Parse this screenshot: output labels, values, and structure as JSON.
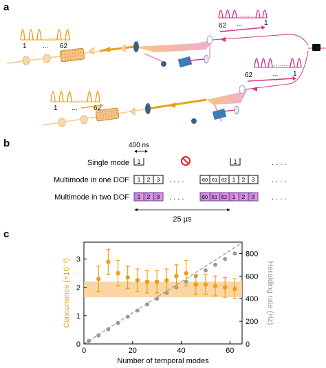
{
  "panels": {
    "a": "a",
    "b": "b",
    "c": "c"
  },
  "colors": {
    "orange": "#f39c12",
    "magenta": "#d63384",
    "gray": "#999999",
    "band": "#f8cf93",
    "purple": "#b57fe0",
    "pink": "#f29ad4",
    "blue": "#3d7ab8"
  },
  "panel_a": {
    "top_left_comb": {
      "left": "1",
      "mid": "...",
      "right": "62"
    },
    "bottom_left_comb": {
      "left": "1",
      "mid": "...",
      "right": "62"
    },
    "top_right_comb": {
      "left": "62",
      "mid": "...",
      "right": "1"
    },
    "bottom_right_comb": {
      "left": "62",
      "mid": "...",
      "right": "1"
    }
  },
  "panel_b": {
    "timescale": "400 ns",
    "rows": [
      {
        "label": "Single mode",
        "cells_left": [
          "1"
        ],
        "cells_right": [
          "1"
        ]
      },
      {
        "label": "Multimode in one DOF",
        "cells_left": [
          "1",
          "2",
          "3"
        ],
        "cells_right": [
          "60",
          "61",
          "62",
          "1",
          "2",
          "3"
        ]
      },
      {
        "label": "Multimode in two DOF",
        "cells_left": [
          "1",
          "2",
          "3"
        ],
        "cells_right": [
          "60",
          "61",
          "62",
          "1",
          "2",
          "3"
        ]
      }
    ],
    "dots": ". . . .",
    "period": "25 µs"
  },
  "chart_data": {
    "type": "scatter",
    "xlabel": "Number of temporal modes",
    "ylabel_left": "Concurrence (×10⁻³)",
    "ylabel_right": "Heralding rate (Hz)",
    "xlim": [
      0,
      65
    ],
    "ylim_left": [
      0,
      3.6
    ],
    "ylim_right": [
      0,
      900
    ],
    "x_ticks": [
      "0",
      "20",
      "40",
      "60"
    ],
    "y_ticks_left": [
      "0",
      "1",
      "2",
      "3"
    ],
    "y_ticks_right": [
      "0",
      "200",
      "400",
      "600",
      "800"
    ],
    "band": {
      "y_low": 1.65,
      "y_high": 2.2
    },
    "series": [
      {
        "axis": "left",
        "points": [
          {
            "x": 6,
            "y": 2.3,
            "err": 0.45
          },
          {
            "x": 10,
            "y": 2.9,
            "err": 0.45
          },
          {
            "x": 14,
            "y": 2.5,
            "err": 0.45
          },
          {
            "x": 18,
            "y": 2.35,
            "err": 0.4
          },
          {
            "x": 22,
            "y": 2.25,
            "err": 0.4
          },
          {
            "x": 26,
            "y": 2.2,
            "err": 0.4
          },
          {
            "x": 30,
            "y": 2.2,
            "err": 0.4
          },
          {
            "x": 34,
            "y": 2.25,
            "err": 0.4
          },
          {
            "x": 38,
            "y": 2.4,
            "err": 0.4
          },
          {
            "x": 42,
            "y": 2.5,
            "err": 0.45
          },
          {
            "x": 46,
            "y": 2.1,
            "err": 0.35
          },
          {
            "x": 50,
            "y": 2.1,
            "err": 0.35
          },
          {
            "x": 54,
            "y": 2.05,
            "err": 0.35
          },
          {
            "x": 58,
            "y": 2.0,
            "err": 0.35
          },
          {
            "x": 62,
            "y": 1.95,
            "err": 0.35
          }
        ]
      },
      {
        "axis": "right",
        "points": [
          {
            "x": 2,
            "y": 25
          },
          {
            "x": 6,
            "y": 75
          },
          {
            "x": 10,
            "y": 130
          },
          {
            "x": 14,
            "y": 185
          },
          {
            "x": 18,
            "y": 240
          },
          {
            "x": 22,
            "y": 295
          },
          {
            "x": 26,
            "y": 350
          },
          {
            "x": 30,
            "y": 400
          },
          {
            "x": 34,
            "y": 450
          },
          {
            "x": 38,
            "y": 500
          },
          {
            "x": 42,
            "y": 550
          },
          {
            "x": 46,
            "y": 600
          },
          {
            "x": 50,
            "y": 650
          },
          {
            "x": 54,
            "y": 700
          },
          {
            "x": 58,
            "y": 750
          },
          {
            "x": 62,
            "y": 800
          }
        ]
      }
    ]
  }
}
